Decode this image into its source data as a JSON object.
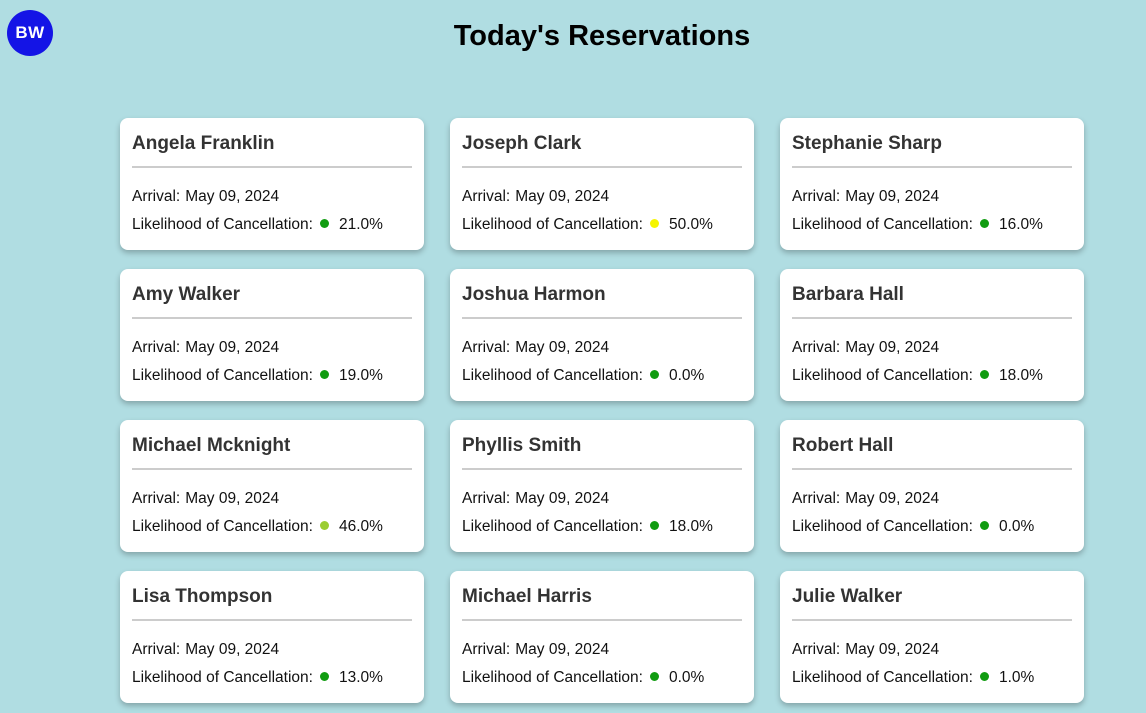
{
  "app": {
    "badge_text": "BW",
    "badge_color": "#1414e6",
    "background_color": "#b0dde2",
    "title": "Today's Reservations"
  },
  "labels": {
    "arrival_prefix": "Arrival:",
    "likelihood_prefix": "Likelihood of Cancellation:"
  },
  "status_colors": {
    "green": "#119c11",
    "yellow_green": "#9acd32",
    "yellow": "#f5f500"
  },
  "reservations": [
    {
      "name": "Angela Franklin",
      "arrival_date": "May 09, 2024",
      "cancellation_likelihood": "21.0%",
      "dot_color": "#119c11"
    },
    {
      "name": "Joseph Clark",
      "arrival_date": "May 09, 2024",
      "cancellation_likelihood": "50.0%",
      "dot_color": "#f5f500"
    },
    {
      "name": "Stephanie Sharp",
      "arrival_date": "May 09, 2024",
      "cancellation_likelihood": "16.0%",
      "dot_color": "#119c11"
    },
    {
      "name": "Amy Walker",
      "arrival_date": "May 09, 2024",
      "cancellation_likelihood": "19.0%",
      "dot_color": "#119c11"
    },
    {
      "name": "Joshua Harmon",
      "arrival_date": "May 09, 2024",
      "cancellation_likelihood": "0.0%",
      "dot_color": "#119c11"
    },
    {
      "name": "Barbara Hall",
      "arrival_date": "May 09, 2024",
      "cancellation_likelihood": "18.0%",
      "dot_color": "#119c11"
    },
    {
      "name": "Michael Mcknight",
      "arrival_date": "May 09, 2024",
      "cancellation_likelihood": "46.0%",
      "dot_color": "#9acd32"
    },
    {
      "name": "Phyllis Smith",
      "arrival_date": "May 09, 2024",
      "cancellation_likelihood": "18.0%",
      "dot_color": "#119c11"
    },
    {
      "name": "Robert Hall",
      "arrival_date": "May 09, 2024",
      "cancellation_likelihood": "0.0%",
      "dot_color": "#119c11"
    },
    {
      "name": "Lisa Thompson",
      "arrival_date": "May 09, 2024",
      "cancellation_likelihood": "13.0%",
      "dot_color": "#119c11"
    },
    {
      "name": "Michael Harris",
      "arrival_date": "May 09, 2024",
      "cancellation_likelihood": "0.0%",
      "dot_color": "#119c11"
    },
    {
      "name": "Julie Walker",
      "arrival_date": "May 09, 2024",
      "cancellation_likelihood": "1.0%",
      "dot_color": "#119c11"
    }
  ]
}
